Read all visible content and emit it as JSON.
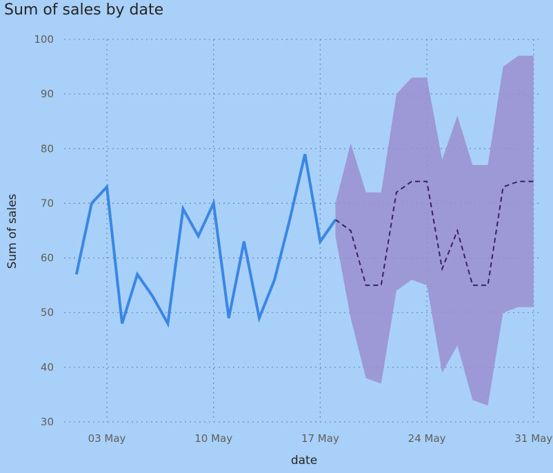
{
  "chart_data": {
    "type": "line",
    "title": "Sum of sales by date",
    "xlabel": "date",
    "ylabel": "Sum of sales",
    "ylim": [
      30,
      100
    ],
    "yticks": [
      30,
      40,
      50,
      60,
      70,
      80,
      90,
      100
    ],
    "xticks": [
      {
        "label": "03 May",
        "date": "2021-05-03"
      },
      {
        "label": "10 May",
        "date": "2021-05-10"
      },
      {
        "label": "17 May",
        "date": "2021-05-17"
      },
      {
        "label": "24 May",
        "date": "2021-05-24"
      },
      {
        "label": "31 May",
        "date": "2021-05-31"
      }
    ],
    "grid": true,
    "series": [
      {
        "role": "actual",
        "color": "#3a86e6",
        "x": [
          "2021-05-01",
          "2021-05-02",
          "2021-05-03",
          "2021-05-04",
          "2021-05-05",
          "2021-05-06",
          "2021-05-07",
          "2021-05-08",
          "2021-05-09",
          "2021-05-10",
          "2021-05-11",
          "2021-05-12",
          "2021-05-13",
          "2021-05-14",
          "2021-05-15",
          "2021-05-16",
          "2021-05-17",
          "2021-05-18"
        ],
        "values": [
          57,
          70,
          73,
          48,
          57,
          53,
          48,
          69,
          64,
          70,
          49,
          63,
          49,
          56,
          67,
          79,
          63,
          67
        ]
      },
      {
        "role": "forecast",
        "color": "#3b1f5e",
        "x": [
          "2021-05-18",
          "2021-05-19",
          "2021-05-20",
          "2021-05-21",
          "2021-05-22",
          "2021-05-23",
          "2021-05-24",
          "2021-05-25",
          "2021-05-26",
          "2021-05-27",
          "2021-05-28",
          "2021-05-29",
          "2021-05-30",
          "2021-05-31"
        ],
        "values": [
          67,
          65,
          55,
          55,
          72,
          74,
          74,
          58,
          65,
          55,
          55,
          73,
          74,
          74
        ],
        "band_upper": [
          70,
          81,
          72,
          72,
          90,
          93,
          93,
          78,
          86,
          77,
          77,
          95,
          97,
          97
        ],
        "band_lower": [
          64,
          49,
          38,
          37,
          54,
          56,
          55,
          39,
          44,
          34,
          33,
          50,
          51,
          51
        ],
        "band_color": "#9b8fd0"
      }
    ]
  }
}
